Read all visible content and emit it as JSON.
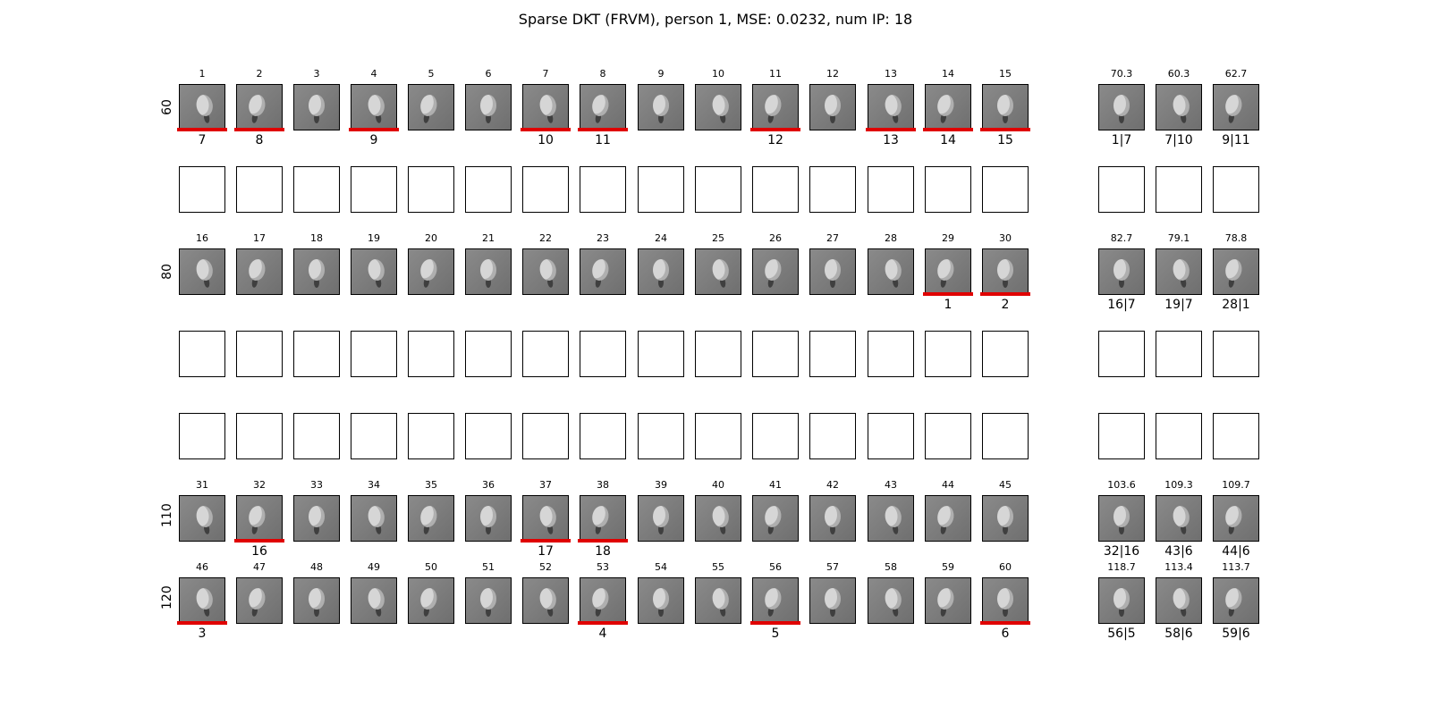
{
  "title": "Sparse DKT (FRVM), person 1, MSE: 0.0232, num IP: 18",
  "row_labels": [
    "60",
    "80",
    "110",
    "120"
  ],
  "rows": [
    {
      "indices": [
        "1",
        "2",
        "3",
        "4",
        "5",
        "6",
        "7",
        "8",
        "9",
        "10",
        "11",
        "12",
        "13",
        "14",
        "15"
      ],
      "selected_labels": [
        "7",
        "8",
        "",
        "9",
        "",
        "",
        "10",
        "11",
        "",
        "",
        "12",
        "",
        "13",
        "14",
        "15"
      ],
      "scores": [
        "70.3",
        "60.3",
        "62.7"
      ],
      "pairs": [
        "1|7",
        "7|10",
        "9|11"
      ]
    },
    {
      "indices": [
        "16",
        "17",
        "18",
        "19",
        "20",
        "21",
        "22",
        "23",
        "24",
        "25",
        "26",
        "27",
        "28",
        "29",
        "30"
      ],
      "selected_labels": [
        "",
        "",
        "",
        "",
        "",
        "",
        "",
        "",
        "",
        "",
        "",
        "",
        "",
        "1",
        "2"
      ],
      "scores": [
        "82.7",
        "79.1",
        "78.8"
      ],
      "pairs": [
        "16|7",
        "19|7",
        "28|1"
      ]
    },
    {
      "indices": [
        "31",
        "32",
        "33",
        "34",
        "35",
        "36",
        "37",
        "38",
        "39",
        "40",
        "41",
        "42",
        "43",
        "44",
        "45"
      ],
      "selected_labels": [
        "",
        "16",
        "",
        "",
        "",
        "",
        "17",
        "18",
        "",
        "",
        "",
        "",
        "",
        "",
        ""
      ],
      "scores": [
        "103.6",
        "109.3",
        "109.7"
      ],
      "pairs": [
        "32|16",
        "43|6",
        "44|6"
      ]
    },
    {
      "indices": [
        "46",
        "47",
        "48",
        "49",
        "50",
        "51",
        "52",
        "53",
        "54",
        "55",
        "56",
        "57",
        "58",
        "59",
        "60"
      ],
      "selected_labels": [
        "3",
        "",
        "",
        "",
        "",
        "",
        "",
        "4",
        "",
        "",
        "5",
        "",
        "",
        "",
        "6"
      ],
      "scores": [
        "118.7",
        "113.4",
        "113.7"
      ],
      "pairs": [
        "56|5",
        "58|6",
        "59|6"
      ]
    }
  ],
  "colors": {
    "highlight": "#e00000",
    "border": "#000000"
  },
  "icons": {
    "face_thumbnail": "face-thumbnail-icon"
  }
}
